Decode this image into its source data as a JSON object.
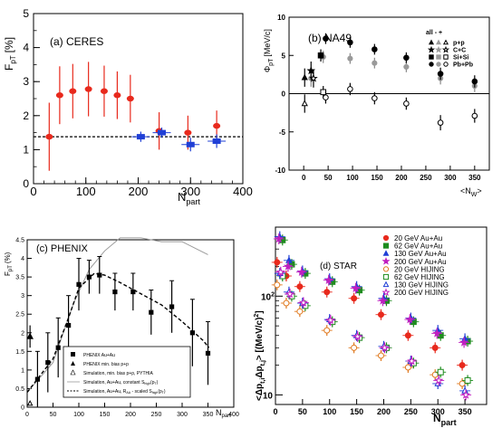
{
  "chart_data": [
    {
      "type": "scatter",
      "panel_label": "(a) CERES",
      "ylabel": "F",
      "ylabel_sub": "pT",
      "ylabel_unit": "[%]",
      "xlabel": "N",
      "xlabel_sub": "part",
      "xlim": [
        0,
        400
      ],
      "ylim": [
        0,
        5
      ],
      "x_ticks": [
        "0",
        "100",
        "200",
        "300",
        "400"
      ],
      "y_ticks": [
        "0",
        "1",
        "2",
        "3",
        "4",
        "5"
      ],
      "reference_line": 1.38,
      "colors": {
        "series_red": "#e8291c",
        "series_blue": "#1f3fd6",
        "reference": "#000000"
      },
      "series": [
        {
          "color": "red",
          "points": [
            {
              "x": 30,
              "y": 1.38,
              "err": 1.0
            },
            {
              "x": 50,
              "y": 2.6,
              "err": 0.85
            },
            {
              "x": 75,
              "y": 2.72,
              "err": 0.8
            },
            {
              "x": 105,
              "y": 2.78,
              "err": 0.8
            },
            {
              "x": 135,
              "y": 2.72,
              "err": 0.75
            },
            {
              "x": 160,
              "y": 2.6,
              "err": 0.7
            },
            {
              "x": 185,
              "y": 2.5,
              "err": 0.7
            },
            {
              "x": 240,
              "y": 1.55,
              "err": 0.55
            },
            {
              "x": 295,
              "y": 1.5,
              "err": 0.5
            },
            {
              "x": 350,
              "y": 1.7,
              "err": 0.45
            }
          ]
        },
        {
          "color": "blue",
          "points": [
            {
              "x": 205,
              "y": 1.38,
              "err": 0.15
            },
            {
              "x": 245,
              "y": 1.5,
              "err": 0.15
            },
            {
              "x": 300,
              "y": 1.15,
              "err": 0.2
            },
            {
              "x": 350,
              "y": 1.25,
              "err": 0.2
            }
          ]
        }
      ]
    },
    {
      "type": "scatter",
      "panel_label": "(b) NA49",
      "ylabel": "Φ",
      "ylabel_sub": "pT",
      "ylabel_unit": "[MeV/c]",
      "xlabel": "<N",
      "xlabel_sub": "W",
      "xlabel_end": ">",
      "xlim": [
        -30,
        380
      ],
      "ylim": [
        -10,
        10
      ],
      "x_ticks": [
        "0",
        "50",
        "100",
        "150",
        "200",
        "250",
        "300",
        "350"
      ],
      "y_ticks": [
        "-10",
        "-5",
        "0",
        "5",
        "10"
      ],
      "legend_header": "all  -  +",
      "legend": [
        {
          "label": "p+p",
          "marker": "triangle"
        },
        {
          "label": "C+C",
          "marker": "star"
        },
        {
          "label": "Si+Si",
          "marker": "square"
        },
        {
          "label": "Pb+Pb",
          "marker": "circle"
        }
      ],
      "points_filled": [
        {
          "x": 2,
          "y": 2.1,
          "err": 1.2,
          "marker": "triangle"
        },
        {
          "x": 15,
          "y": 3.0,
          "err": 1.2,
          "marker": "star"
        },
        {
          "x": 35,
          "y": 5.0,
          "err": 0.8,
          "marker": "square"
        },
        {
          "x": 45,
          "y": 7.2,
          "err": 0.7,
          "marker": "circle"
        },
        {
          "x": 95,
          "y": 6.7,
          "err": 0.7,
          "marker": "circle"
        },
        {
          "x": 145,
          "y": 5.8,
          "err": 0.7,
          "marker": "circle"
        },
        {
          "x": 210,
          "y": 4.7,
          "err": 0.7,
          "marker": "circle"
        },
        {
          "x": 280,
          "y": 2.6,
          "err": 0.8,
          "marker": "circle"
        },
        {
          "x": 350,
          "y": 1.6,
          "err": 0.8,
          "marker": "circle"
        }
      ],
      "points_gray": [
        {
          "x": 15,
          "y": 2.0,
          "err": 1.1
        },
        {
          "x": 40,
          "y": 4.8,
          "err": 0.8
        },
        {
          "x": 95,
          "y": 4.6,
          "err": 0.7
        },
        {
          "x": 145,
          "y": 4.0,
          "err": 0.7
        },
        {
          "x": 210,
          "y": 3.5,
          "err": 0.7
        },
        {
          "x": 280,
          "y": 2.0,
          "err": 0.8
        },
        {
          "x": 350,
          "y": 1.0,
          "err": 0.8
        }
      ],
      "points_open": [
        {
          "x": 2,
          "y": -1.3,
          "err": 1.2,
          "marker": "triangle"
        },
        {
          "x": 20,
          "y": 2.0,
          "err": 1.2,
          "marker": "star"
        },
        {
          "x": 40,
          "y": 0.2,
          "err": 0.8,
          "marker": "square"
        },
        {
          "x": 45,
          "y": -0.5,
          "err": 0.8,
          "marker": "circle"
        },
        {
          "x": 95,
          "y": 0.6,
          "err": 0.8,
          "marker": "circle"
        },
        {
          "x": 145,
          "y": -0.6,
          "err": 0.8,
          "marker": "circle"
        },
        {
          "x": 210,
          "y": -1.3,
          "err": 0.8,
          "marker": "circle"
        },
        {
          "x": 280,
          "y": -3.8,
          "err": 1.0,
          "marker": "circle"
        },
        {
          "x": 350,
          "y": -2.9,
          "err": 0.9,
          "marker": "circle"
        }
      ]
    },
    {
      "type": "scatter",
      "panel_label": "(c) PHENIX",
      "ylabel": "F",
      "ylabel_sub": "pT",
      "ylabel_unit": "(%)",
      "xlabel": "N",
      "xlabel_sub": "part",
      "xlim": [
        0,
        400
      ],
      "ylim": [
        0,
        4.5
      ],
      "x_ticks": [
        "0",
        "50",
        "100",
        "150",
        "200",
        "250",
        "300",
        "350",
        "400"
      ],
      "y_ticks": [
        "0",
        "0.5",
        "1",
        "1.5",
        "2",
        "2.5",
        "3",
        "3.5",
        "4",
        "4.5"
      ],
      "legend": [
        {
          "label": "PHENIX Au+Au",
          "marker": "square"
        },
        {
          "label": "PHENIX min. bias p+p",
          "marker": "triangle"
        },
        {
          "label": "Simulation, min. bias p+p, PYTHIA",
          "marker": "open-triangle"
        },
        {
          "label": "Simulation, Au+Au, constant S",
          "label_sub": "high",
          "label_end": "(p",
          "label_sub2": "T",
          "label_end2": ")",
          "marker": "line-gray"
        },
        {
          "label": "Simulation, Au+Au, R",
          "label_sub": "AA",
          "label_end": " - scaled S",
          "label_sub2": "high",
          "label_end2": "(p",
          "label_sub3": "T",
          "label_end3": ")",
          "marker": "line-dashed"
        }
      ],
      "data_points": [
        {
          "x": 20,
          "y": 0.75,
          "err": 0.75
        },
        {
          "x": 40,
          "y": 1.2,
          "err": 0.8
        },
        {
          "x": 60,
          "y": 1.6,
          "err": 0.8
        },
        {
          "x": 80,
          "y": 2.2,
          "err": 0.8
        },
        {
          "x": 100,
          "y": 3.3,
          "err": 0.7
        },
        {
          "x": 120,
          "y": 3.5,
          "err": 0.45
        },
        {
          "x": 140,
          "y": 3.55,
          "err": 0.5
        },
        {
          "x": 170,
          "y": 3.1,
          "err": 0.5
        },
        {
          "x": 205,
          "y": 3.1,
          "err": 0.5
        },
        {
          "x": 240,
          "y": 2.55,
          "err": 0.6
        },
        {
          "x": 280,
          "y": 2.7,
          "err": 0.7
        },
        {
          "x": 320,
          "y": 2.0,
          "err": 0.9
        },
        {
          "x": 350,
          "y": 1.45,
          "err": 0.85
        }
      ],
      "pp_point": {
        "x": 2,
        "y": 1.9,
        "err": 0.3
      },
      "pythia_point": {
        "x": 2,
        "y": 0.1
      },
      "line_constant": [
        [
          0,
          0.4
        ],
        [
          50,
          1.2
        ],
        [
          90,
          2.8
        ],
        [
          120,
          3.7
        ],
        [
          150,
          4.2
        ],
        [
          180,
          4.55
        ],
        [
          220,
          4.55
        ],
        [
          260,
          4.45
        ],
        [
          300,
          4.45
        ],
        [
          350,
          4.1
        ]
      ],
      "line_scaled": [
        [
          0,
          0.4
        ],
        [
          50,
          1.3
        ],
        [
          80,
          2.4
        ],
        [
          100,
          3.2
        ],
        [
          130,
          3.6
        ],
        [
          150,
          3.55
        ],
        [
          180,
          3.35
        ],
        [
          220,
          3.05
        ],
        [
          260,
          2.75
        ],
        [
          300,
          2.3
        ],
        [
          340,
          1.8
        ],
        [
          352,
          1.6
        ]
      ]
    },
    {
      "type": "scatter",
      "panel_label": "(d) STAR",
      "ylabel": "<Δp",
      "ylabel_sub": "t,i",
      "ylabel_mid": "Δp",
      "ylabel_sub2": "t,j",
      "ylabel_end": "> [(MeV/c)",
      "ylabel_sup": "2",
      "ylabel_close": "]",
      "xlabel": "N",
      "xlabel_sub": "part",
      "xlim": [
        0,
        390
      ],
      "ylim_log": [
        8,
        500
      ],
      "log_y": true,
      "x_ticks": [
        "0",
        "50",
        "100",
        "150",
        "200",
        "250",
        "300",
        "350"
      ],
      "y_ticks": [
        {
          "value": 10,
          "label": "10"
        },
        {
          "value": 100,
          "label": "10",
          "sup": "2"
        }
      ],
      "colors": {
        "red": "#e8291c",
        "green": "#1e8c1e",
        "blue": "#1f3fd6",
        "magenta": "#c020c0",
        "orange": "#e07a20"
      },
      "legend": [
        {
          "label": "20 GeV Au+Au",
          "color": "red",
          "marker": "circle"
        },
        {
          "label": "62 GeV Au+Au",
          "color": "green",
          "marker": "square"
        },
        {
          "label": "130 GeV Au+Au",
          "color": "blue",
          "marker": "triangle"
        },
        {
          "label": "200 GeV Au+Au",
          "color": "magenta",
          "marker": "star"
        },
        {
          "label": "20 GeV HIJING",
          "color": "orange",
          "marker": "open-circle"
        },
        {
          "label": "62 GeV HIJING",
          "color": "green",
          "marker": "open-square"
        },
        {
          "label": "130 GeV HIJING",
          "color": "blue",
          "marker": "open-triangle"
        },
        {
          "label": "200 GeV HIJING",
          "color": "magenta",
          "marker": "open-star"
        }
      ],
      "series": [
        {
          "name": "20 GeV Au+Au",
          "color": "red",
          "marker": "circle",
          "points": [
            [
              8,
              220
            ],
            [
              25,
              160
            ],
            [
              50,
              125
            ],
            [
              100,
              110
            ],
            [
              150,
              95
            ],
            [
              200,
              65
            ],
            [
              250,
              40
            ],
            [
              300,
              30
            ],
            [
              350,
              20
            ]
          ]
        },
        {
          "name": "62 GeV Au+Au",
          "color": "green",
          "marker": "square",
          "points": [
            [
              8,
              370
            ],
            [
              25,
              210
            ],
            [
              50,
              170
            ],
            [
              100,
              140
            ],
            [
              150,
              115
            ],
            [
              200,
              90
            ],
            [
              250,
              55
            ],
            [
              300,
              40
            ],
            [
              350,
              35
            ]
          ]
        },
        {
          "name": "130 GeV Au+Au",
          "color": "blue",
          "marker": "triangle",
          "points": [
            [
              8,
              400
            ],
            [
              25,
              230
            ],
            [
              50,
              180
            ],
            [
              100,
              150
            ],
            [
              150,
              125
            ],
            [
              200,
              95
            ],
            [
              250,
              60
            ],
            [
              300,
              45
            ],
            [
              350,
              37
            ]
          ]
        },
        {
          "name": "200 GeV Au+Au",
          "color": "magenta",
          "marker": "star",
          "points": [
            [
              8,
              380
            ],
            [
              25,
              200
            ],
            [
              50,
              175
            ],
            [
              100,
              145
            ],
            [
              150,
              120
            ],
            [
              200,
              90
            ],
            [
              250,
              58
            ],
            [
              300,
              42
            ],
            [
              350,
              34
            ]
          ]
        },
        {
          "name": "20 GeV HIJING",
          "color": "orange",
          "marker": "open-circle",
          "points": [
            [
              8,
              130
            ],
            [
              25,
              85
            ],
            [
              50,
              70
            ],
            [
              100,
              45
            ],
            [
              150,
              30
            ],
            [
              200,
              25
            ],
            [
              250,
              19
            ],
            [
              300,
              16
            ],
            [
              350,
              13
            ]
          ]
        },
        {
          "name": "62 GeV HIJING",
          "color": "green",
          "marker": "open-square",
          "points": [
            [
              8,
              160
            ],
            [
              25,
              100
            ],
            [
              50,
              80
            ],
            [
              100,
              55
            ],
            [
              150,
              38
            ],
            [
              200,
              30
            ],
            [
              250,
              21
            ],
            [
              300,
              17
            ],
            [
              350,
              14
            ]
          ]
        },
        {
          "name": "130 GeV HIJING",
          "color": "blue",
          "marker": "open-triangle",
          "points": [
            [
              8,
              170
            ],
            [
              25,
              110
            ],
            [
              50,
              85
            ],
            [
              100,
              58
            ],
            [
              150,
              40
            ],
            [
              200,
              31
            ],
            [
              250,
              22
            ],
            [
              300,
              13
            ],
            [
              350,
              11
            ]
          ]
        },
        {
          "name": "200 GeV HIJING",
          "color": "magenta",
          "marker": "open-star",
          "points": [
            [
              8,
              175
            ],
            [
              25,
              105
            ],
            [
              50,
              86
            ],
            [
              100,
              57
            ],
            [
              150,
              39
            ],
            [
              200,
              30
            ],
            [
              250,
              22
            ],
            [
              300,
              14
            ],
            [
              350,
              10
            ]
          ]
        }
      ]
    }
  ]
}
